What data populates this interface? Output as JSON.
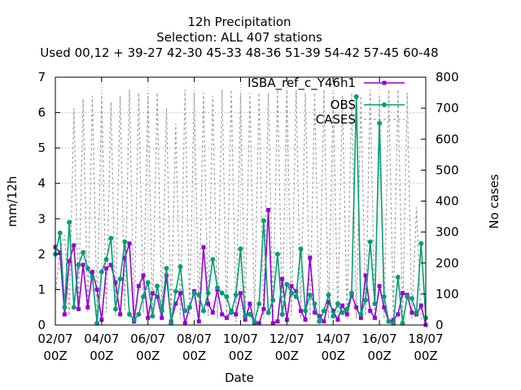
{
  "chart_data": {
    "type": "line",
    "title": "12h Precipitation",
    "subtitle": "Selection: ALL    407 stations",
    "subtitle2": "Used  00,12  + 39-27 42-30 45-33 48-36 51-39 54-42 57-45 60-48",
    "xlabel": "Date",
    "ylabel": "mm/12h",
    "y2label": "No cases",
    "xlim": [
      0,
      64
    ],
    "ylim": [
      0,
      7
    ],
    "y2lim": [
      0,
      800
    ],
    "grid": true,
    "legend_position": "top-right",
    "x_ticks": [
      {
        "x": 0,
        "line1": "02/07",
        "line2": "00Z"
      },
      {
        "x": 8,
        "line1": "04/07",
        "line2": "00Z"
      },
      {
        "x": 16,
        "line1": "06/07",
        "line2": "00Z"
      },
      {
        "x": 24,
        "line1": "08/07",
        "line2": "00Z"
      },
      {
        "x": 32,
        "line1": "10/07",
        "line2": "00Z"
      },
      {
        "x": 40,
        "line1": "12/07",
        "line2": "00Z"
      },
      {
        "x": 48,
        "line1": "14/07",
        "line2": "00Z"
      },
      {
        "x": 56,
        "line1": "16/07",
        "line2": "00Z"
      },
      {
        "x": 64,
        "line1": "18/07",
        "line2": "00Z"
      }
    ],
    "y_ticks": [
      "0",
      "1",
      "2",
      "3",
      "4",
      "5",
      "6",
      "7"
    ],
    "y2_ticks": [
      "0",
      "100",
      "200",
      "300",
      "400",
      "500",
      "600",
      "700",
      "800"
    ],
    "series": [
      {
        "name": "ISBA_ref_c_Y46h1",
        "color": "#9400d3",
        "axis": "y",
        "marker": "square",
        "values": [
          2.2,
          2.05,
          0.3,
          1.8,
          2.25,
          0.45,
          1.7,
          0.5,
          1.5,
          1.0,
          0.15,
          1.6,
          1.7,
          1.2,
          0.3,
          1.9,
          2.3,
          0.1,
          1.1,
          1.4,
          0.2,
          0.9,
          0.8,
          0.2,
          1.4,
          0.1,
          0.6,
          0.9,
          0.05,
          0.5,
          0.95,
          0.1,
          2.2,
          0.6,
          0.35,
          1.0,
          0.3,
          0.2,
          0.4,
          0.3,
          0.9,
          0.15,
          0.6,
          0.05,
          0.05,
          0.45,
          3.25,
          0.05,
          0.1,
          1.3,
          0.15,
          1.1,
          0.95,
          0.4,
          0.15,
          1.9,
          0.35,
          0.25,
          0.1,
          0.65,
          0.4,
          0.15,
          0.55,
          0.3,
          0.85,
          0.5,
          0.2,
          1.4,
          0.4,
          0.2,
          1.1,
          0.5,
          0.1,
          0.15,
          0.3,
          0.9,
          0.85,
          0.35,
          0.3,
          0.55,
          0.0
        ]
      },
      {
        "name": "OBS",
        "color": "#009e73",
        "axis": "y",
        "marker": "circle",
        "values": [
          2.0,
          2.6,
          0.5,
          2.9,
          0.5,
          1.7,
          2.05,
          1.6,
          1.35,
          0.05,
          1.5,
          1.85,
          2.45,
          0.45,
          1.3,
          2.35,
          0.3,
          0.15,
          0.3,
          0.8,
          1.2,
          0.25,
          1.1,
          0.4,
          1.6,
          0.05,
          0.95,
          1.65,
          0.4,
          0.5,
          0.9,
          0.85,
          0.4,
          0.9,
          1.85,
          1.05,
          0.9,
          0.8,
          0.35,
          0.85,
          2.15,
          0.25,
          0.3,
          0.1,
          0.6,
          2.95,
          0.35,
          0.7,
          2.0,
          0.3,
          1.15,
          0.9,
          0.8,
          2.15,
          0.4,
          0.85,
          0.6,
          0.1,
          0.4,
          0.85,
          0.25,
          0.6,
          0.35,
          0.45,
          0.9,
          6.45,
          0.3,
          0.7,
          2.35,
          0.6,
          5.7,
          0.8,
          0.1,
          0.05,
          1.35,
          0.05,
          0.8,
          0.75,
          0.35,
          2.3,
          0.2
        ]
      },
      {
        "name": "CASES",
        "color": "#a0a0a0",
        "axis": "y2",
        "marker": "none",
        "values": [
          100,
          240,
          290,
          30,
          700,
          50,
          730,
          40,
          740,
          30,
          750,
          40,
          720,
          30,
          740,
          50,
          760,
          20,
          750,
          40,
          750,
          30,
          750,
          30,
          700,
          20,
          650,
          20,
          760,
          30,
          750,
          20,
          750,
          30,
          740,
          20,
          760,
          30,
          760,
          10,
          750,
          20,
          750,
          30,
          750,
          20,
          750,
          30,
          760,
          20,
          760,
          30,
          760,
          20,
          750,
          20,
          750,
          30,
          760,
          20,
          750,
          20,
          740,
          20,
          750,
          20,
          740,
          30,
          760,
          20,
          740,
          20,
          760,
          30,
          760,
          20,
          750,
          20,
          380,
          20,
          10
        ]
      }
    ]
  }
}
